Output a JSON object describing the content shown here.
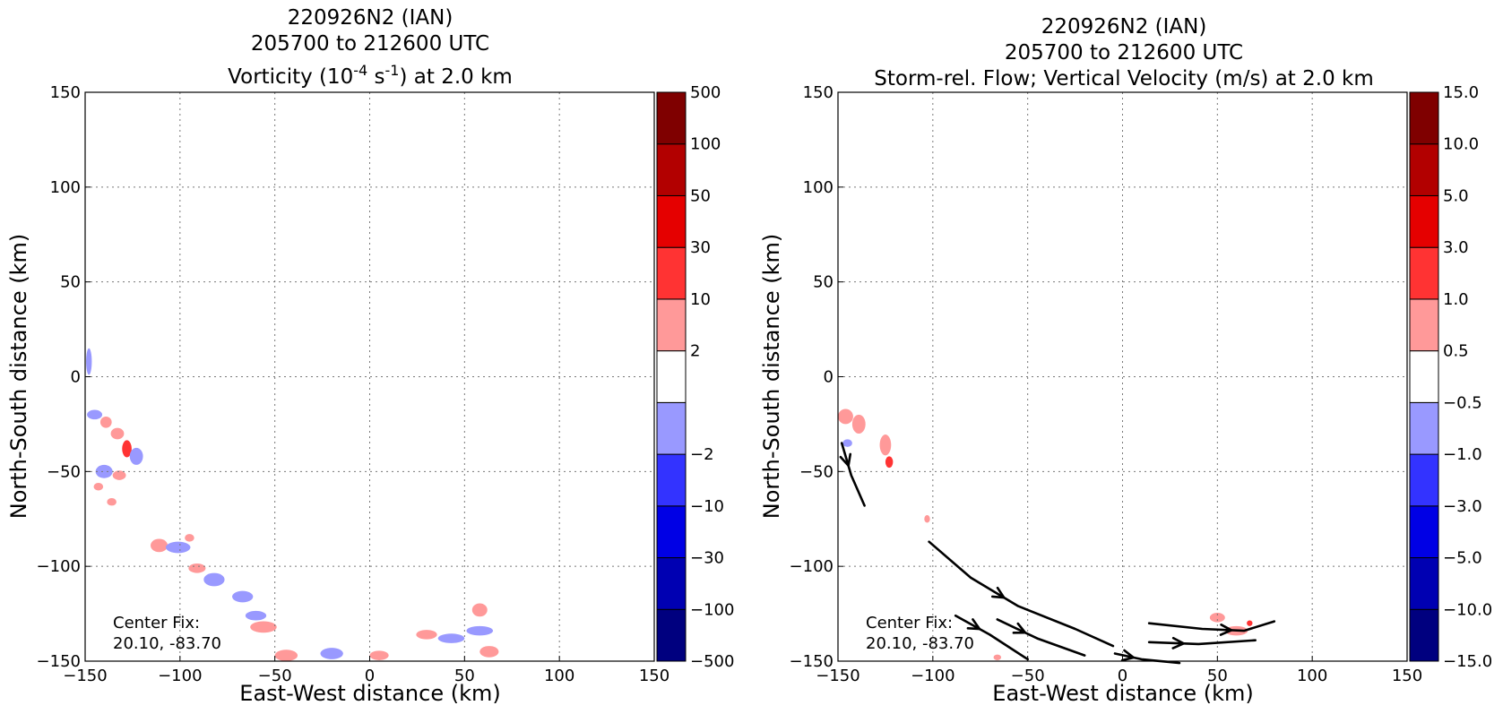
{
  "chart_data": [
    {
      "type": "heatmap",
      "title_lines": [
        "220926N2 (IAN)",
        "205700 to 212600 UTC"
      ],
      "title_var": {
        "pre": "Vorticity (10",
        "sup1": "-4",
        "mid": " s",
        "sup2": "-1",
        "post": ") at 2.0 km"
      },
      "xlabel": "East-West distance (km)",
      "ylabel": "North-South distance (km)",
      "xlim": [
        -150,
        150
      ],
      "ylim": [
        -150,
        150
      ],
      "xticks": [
        "−150",
        "−100",
        "−50",
        "0",
        "50",
        "100",
        "150"
      ],
      "yticks": [
        "−150",
        "−100",
        "−50",
        "0",
        "50",
        "100",
        "150"
      ],
      "grid": true,
      "annotation": [
        "Center Fix:",
        "20.10, -83.70"
      ],
      "colorbar": {
        "ticks": [
          "−500",
          "−100",
          "−30",
          "−10",
          "−2",
          "2",
          "10",
          "30",
          "50",
          "100",
          "500"
        ],
        "colors": [
          "#00007f",
          "#0000b2",
          "#0000e5",
          "#3333ff",
          "#9999ff",
          "#ffffff",
          "#ff9999",
          "#ff3333",
          "#e50000",
          "#b20000",
          "#7f0000"
        ]
      },
      "features": [
        {
          "x": -148,
          "y": 8,
          "w": 3,
          "h": 14,
          "v": "neg"
        },
        {
          "x": -145,
          "y": -20,
          "w": 8,
          "h": 5,
          "v": "neg"
        },
        {
          "x": -139,
          "y": -24,
          "w": 6,
          "h": 6,
          "v": "pos"
        },
        {
          "x": -133,
          "y": -30,
          "w": 7,
          "h": 6,
          "v": "pos"
        },
        {
          "x": -128,
          "y": -38,
          "w": 5,
          "h": 9,
          "v": "pos2"
        },
        {
          "x": -123,
          "y": -42,
          "w": 7,
          "h": 9,
          "v": "neg"
        },
        {
          "x": -140,
          "y": -50,
          "w": 9,
          "h": 7,
          "v": "neg"
        },
        {
          "x": -132,
          "y": -52,
          "w": 7,
          "h": 5,
          "v": "pos"
        },
        {
          "x": -143,
          "y": -58,
          "w": 5,
          "h": 4,
          "v": "pos"
        },
        {
          "x": -136,
          "y": -66,
          "w": 5,
          "h": 4,
          "v": "pos"
        },
        {
          "x": -111,
          "y": -89,
          "w": 9,
          "h": 7,
          "v": "pos"
        },
        {
          "x": -101,
          "y": -90,
          "w": 13,
          "h": 6,
          "v": "neg"
        },
        {
          "x": -95,
          "y": -85,
          "w": 5,
          "h": 4,
          "v": "pos"
        },
        {
          "x": -91,
          "y": -101,
          "w": 9,
          "h": 5,
          "v": "pos"
        },
        {
          "x": -82,
          "y": -107,
          "w": 11,
          "h": 7,
          "v": "neg"
        },
        {
          "x": -67,
          "y": -116,
          "w": 11,
          "h": 6,
          "v": "neg"
        },
        {
          "x": -60,
          "y": -126,
          "w": 11,
          "h": 5,
          "v": "neg"
        },
        {
          "x": -56,
          "y": -132,
          "w": 14,
          "h": 6,
          "v": "pos"
        },
        {
          "x": -44,
          "y": -147,
          "w": 12,
          "h": 6,
          "v": "pos"
        },
        {
          "x": -20,
          "y": -146,
          "w": 12,
          "h": 6,
          "v": "neg"
        },
        {
          "x": 5,
          "y": -147,
          "w": 10,
          "h": 5,
          "v": "pos"
        },
        {
          "x": 30,
          "y": -136,
          "w": 11,
          "h": 5,
          "v": "pos"
        },
        {
          "x": 43,
          "y": -138,
          "w": 14,
          "h": 5,
          "v": "neg"
        },
        {
          "x": 58,
          "y": -123,
          "w": 8,
          "h": 7,
          "v": "pos"
        },
        {
          "x": 58,
          "y": -134,
          "w": 14,
          "h": 5,
          "v": "neg"
        },
        {
          "x": 63,
          "y": -145,
          "w": 10,
          "h": 6,
          "v": "pos"
        }
      ]
    },
    {
      "type": "heatmap",
      "title_lines": [
        "220926N2 (IAN)",
        "205700 to 212600 UTC",
        "Storm-rel. Flow; Vertical Velocity (m/s) at 2.0 km"
      ],
      "xlabel": "East-West distance (km)",
      "ylabel": "North-South distance (km)",
      "xlim": [
        -150,
        150
      ],
      "ylim": [
        -150,
        150
      ],
      "xticks": [
        "−150",
        "−100",
        "−50",
        "0",
        "50",
        "100",
        "150"
      ],
      "yticks": [
        "−150",
        "−100",
        "−50",
        "0",
        "50",
        "100",
        "150"
      ],
      "grid": true,
      "annotation": [
        "Center Fix:",
        "20.10, -83.70"
      ],
      "colorbar": {
        "ticks": [
          "−15.0",
          "−10.0",
          "−5.0",
          "−3.0",
          "−1.0",
          "−0.5",
          "0.5",
          "1.0",
          "3.0",
          "5.0",
          "10.0",
          "15.0"
        ],
        "colors": [
          "#00007f",
          "#0000b2",
          "#0000e5",
          "#3333ff",
          "#9999ff",
          "#ffffff",
          "#ff9999",
          "#ff3333",
          "#e50000",
          "#b20000",
          "#7f0000"
        ]
      },
      "features": [
        {
          "x": -146,
          "y": -21,
          "w": 8,
          "h": 8,
          "v": "pos"
        },
        {
          "x": -139,
          "y": -25,
          "w": 7,
          "h": 10,
          "v": "pos"
        },
        {
          "x": -145,
          "y": -35,
          "w": 5,
          "h": 4,
          "v": "neg"
        },
        {
          "x": -125,
          "y": -36,
          "w": 6,
          "h": 11,
          "v": "pos"
        },
        {
          "x": -123,
          "y": -45,
          "w": 4,
          "h": 6,
          "v": "pos2"
        },
        {
          "x": -103,
          "y": -75,
          "w": 3,
          "h": 4,
          "v": "pos"
        },
        {
          "x": 50,
          "y": -127,
          "w": 8,
          "h": 5,
          "v": "pos"
        },
        {
          "x": 60,
          "y": -134,
          "w": 12,
          "h": 5,
          "v": "pos"
        },
        {
          "x": 67,
          "y": -130,
          "w": 3,
          "h": 3,
          "v": "pos2"
        },
        {
          "x": -66,
          "y": -148,
          "w": 4,
          "h": 3,
          "v": "pos"
        }
      ],
      "streamlines": [
        [
          [
            -148,
            -35
          ],
          [
            -143,
            -52
          ],
          [
            -136,
            -68
          ]
        ],
        [
          [
            -102,
            -87
          ],
          [
            -80,
            -106
          ],
          [
            -55,
            -121
          ],
          [
            -25,
            -133
          ],
          [
            -5,
            -142
          ]
        ],
        [
          [
            -88,
            -126
          ],
          [
            -70,
            -136
          ],
          [
            -50,
            -149
          ]
        ],
        [
          [
            -66,
            -128
          ],
          [
            -45,
            -138
          ],
          [
            -20,
            -147
          ]
        ],
        [
          [
            -4,
            -146
          ],
          [
            10,
            -149
          ],
          [
            30,
            -151
          ]
        ],
        [
          [
            14,
            -130
          ],
          [
            42,
            -133
          ],
          [
            64,
            -134
          ],
          [
            80,
            -129
          ]
        ],
        [
          [
            14,
            -140
          ],
          [
            40,
            -141
          ],
          [
            70,
            -139
          ]
        ]
      ]
    }
  ]
}
